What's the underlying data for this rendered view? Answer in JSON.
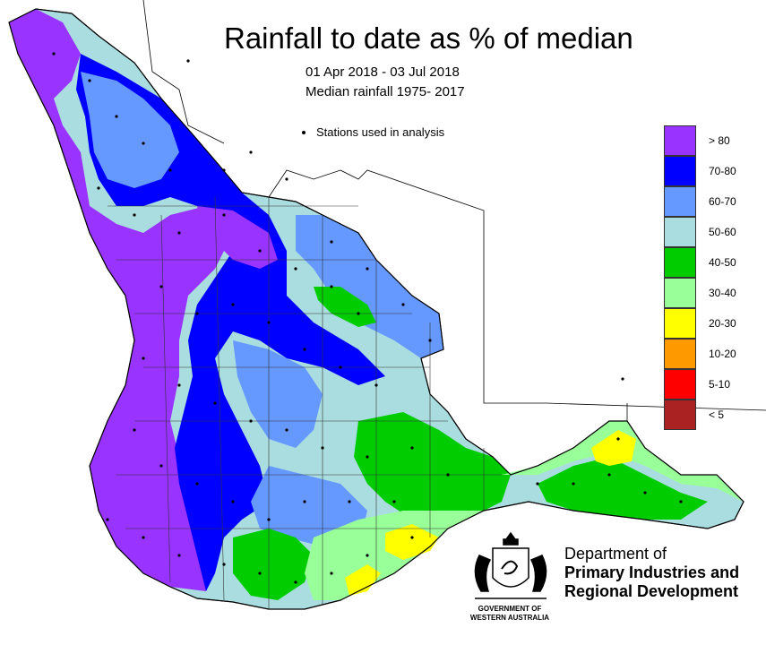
{
  "title": "Rainfall to date as % of median",
  "date_range": "01 Apr 2018 - 03 Jul 2018",
  "median_period": "Median rainfall 1975- 2017",
  "stations_label": "Stations used in analysis",
  "legend": [
    {
      "label": "> 80",
      "color": "#9933ff"
    },
    {
      "label": "70-80",
      "color": "#0000ff"
    },
    {
      "label": "60-70",
      "color": "#6699ff"
    },
    {
      "label": "50-60",
      "color": "#aadde0"
    },
    {
      "label": "40-50",
      "color": "#00cc00"
    },
    {
      "label": "30-40",
      "color": "#99ff99"
    },
    {
      "label": "20-30",
      "color": "#ffff00"
    },
    {
      "label": "10-20",
      "color": "#ff9900"
    },
    {
      "label": "5-10",
      "color": "#ff0000"
    },
    {
      "label": "< 5",
      "color": "#aa2222"
    }
  ],
  "department": {
    "line1": "Department of",
    "line2": "Primary Industries and",
    "line3": "Regional Development"
  },
  "government": {
    "line1": "GOVERNMENT OF",
    "line2": "WESTERN AUSTRALIA"
  }
}
